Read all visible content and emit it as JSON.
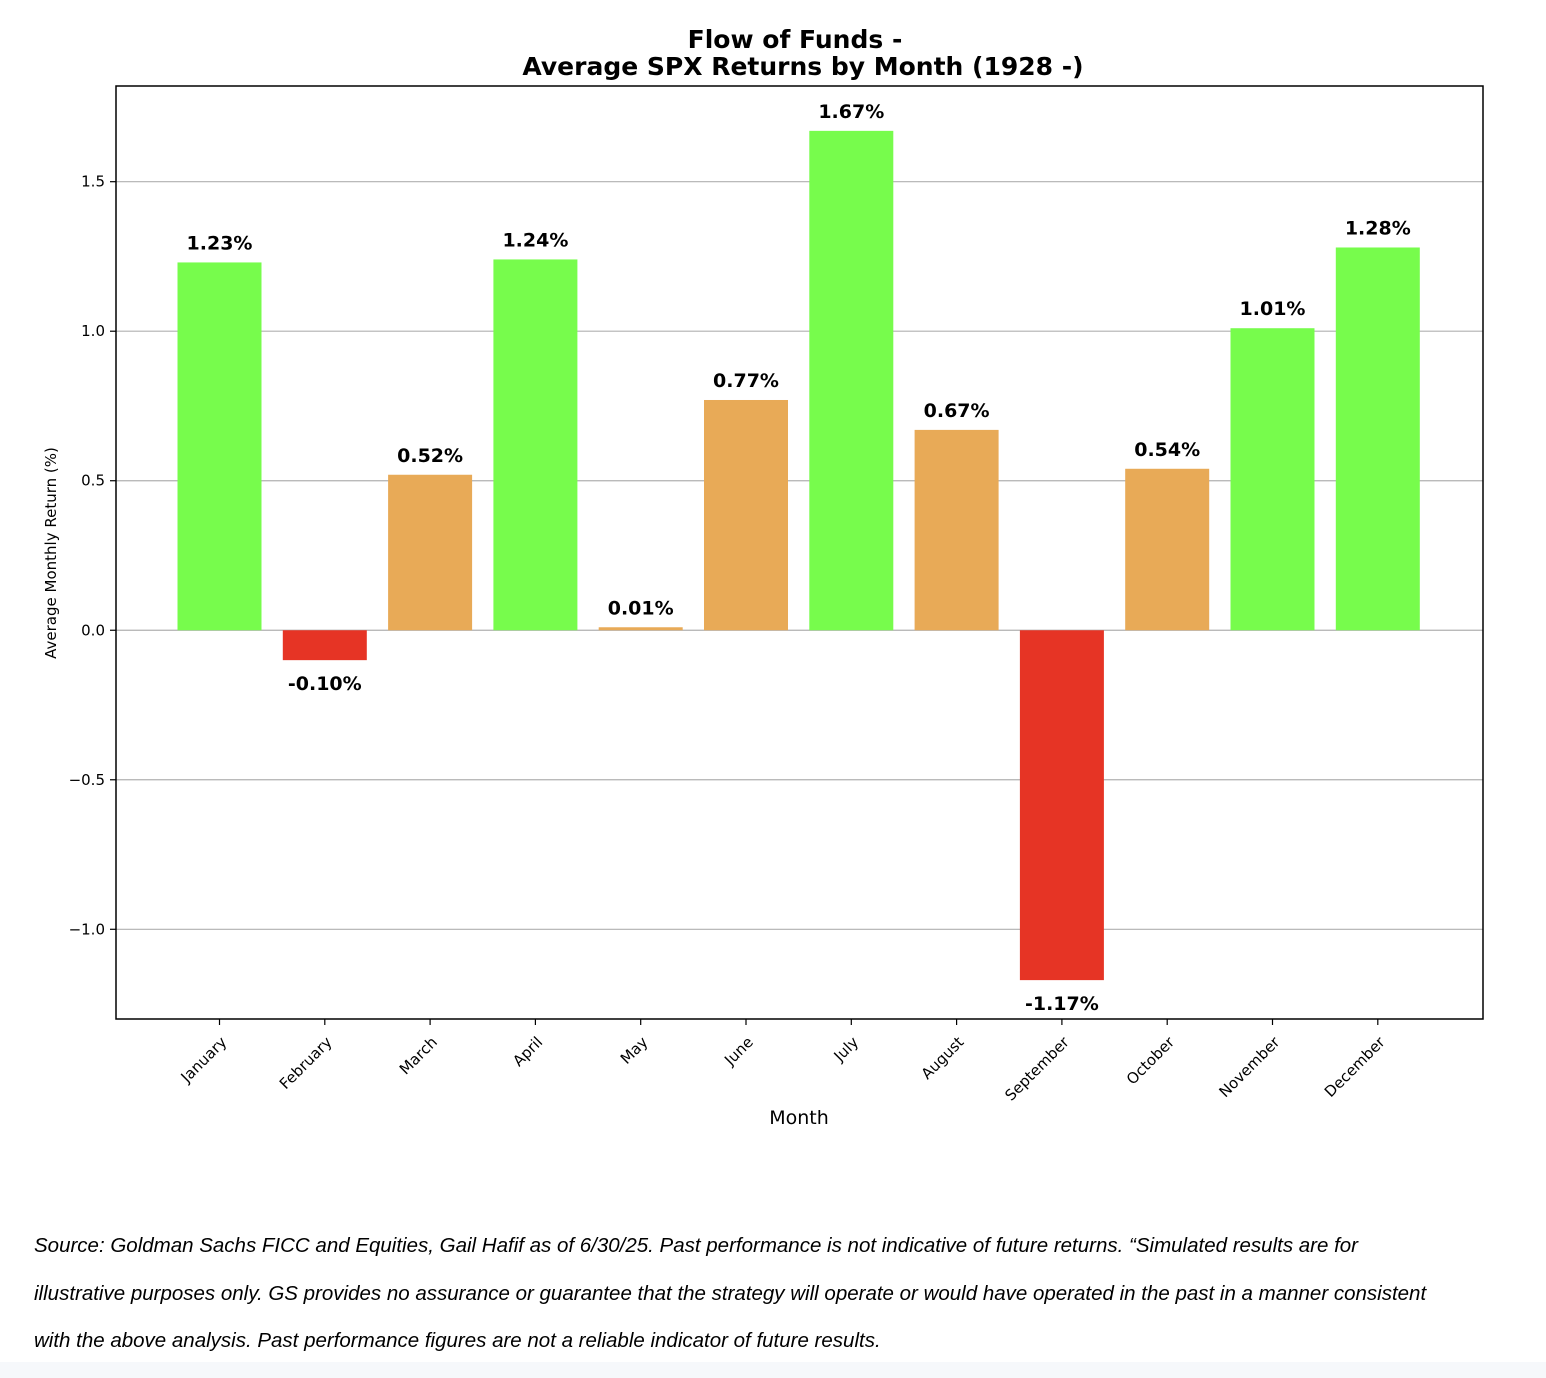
{
  "chart_data": {
    "type": "bar",
    "title": [
      "Flow of Funds -",
      "Average SPX Returns by Month (1928 -)"
    ],
    "xlabel": "Month",
    "ylabel": "Average Monthly Return (%)",
    "ylim": [
      -1.3,
      1.82
    ],
    "yticks": [
      -1.0,
      -0.5,
      0.0,
      0.5,
      1.0,
      1.5
    ],
    "ytick_labels": [
      "−1.0",
      "−0.5",
      "0.0",
      "0.5",
      "1.0",
      "1.5"
    ],
    "grid": "y",
    "categories": [
      "January",
      "February",
      "March",
      "April",
      "May",
      "June",
      "July",
      "August",
      "September",
      "October",
      "November",
      "December"
    ],
    "values": [
      1.23,
      -0.1,
      0.52,
      1.24,
      0.01,
      0.77,
      1.67,
      0.67,
      -1.17,
      0.54,
      1.01,
      1.28
    ],
    "labels": [
      "1.23%",
      "-0.10%",
      "0.52%",
      "1.24%",
      "0.01%",
      "0.77%",
      "1.67%",
      "0.67%",
      "-1.17%",
      "0.54%",
      "1.01%",
      "1.28%"
    ],
    "colors": [
      "#77fc4c",
      "#e63425",
      "#e8aa57",
      "#77fc4c",
      "#e8aa57",
      "#e8aa57",
      "#77fc4c",
      "#e8aa57",
      "#e63425",
      "#e8aa57",
      "#77fc4c",
      "#77fc4c"
    ]
  },
  "footnote": {
    "lines": [
      "Source: Goldman Sachs FICC and Equities, Gail Hafif as of 6/30/25. Past performance is not indicative of future returns. “Simulated results are for",
      "illustrative purposes only. GS provides no assurance or guarantee that the strategy will operate or would have operated in the past in a manner consistent",
      "with the above analysis. Past performance figures are not a reliable indicator of future results."
    ]
  }
}
